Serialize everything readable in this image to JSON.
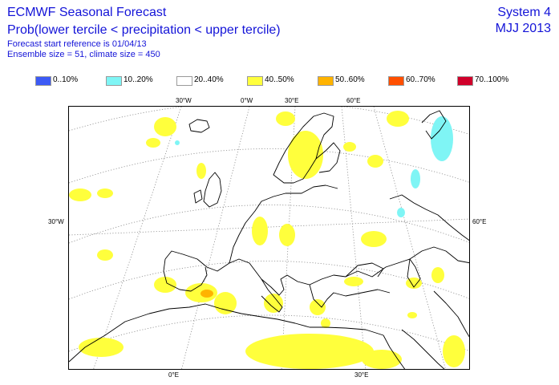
{
  "header": {
    "title": "ECMWF Seasonal Forecast",
    "subtitle": "Prob(lower tercile < precipitation < upper tercile)",
    "forecast_ref": "Forecast start reference is 01/04/13",
    "ensemble": "Ensemble size = 51, climate size = 450",
    "system": "System 4",
    "period": "MJJ 2013"
  },
  "legend": [
    {
      "label": "0..10%",
      "color": "#3c5af5"
    },
    {
      "label": "10..20%",
      "color": "#7ff5f5"
    },
    {
      "label": "20..40%",
      "color": "#ffffff"
    },
    {
      "label": "40..50%",
      "color": "#ffff3c"
    },
    {
      "label": "50..60%",
      "color": "#ffb300"
    },
    {
      "label": "60..70%",
      "color": "#ff4f00"
    },
    {
      "label": "70..100%",
      "color": "#d0002a"
    }
  ],
  "axis_labels": {
    "top": [
      "30°W",
      "0°W",
      "30°E",
      "60°E"
    ],
    "left": "30°W",
    "right": "60°E",
    "bottom": [
      "0°E",
      "30°E"
    ]
  },
  "colors": {
    "title_blue": "#1414d8",
    "grid": "#888888",
    "coast": "#000000"
  }
}
